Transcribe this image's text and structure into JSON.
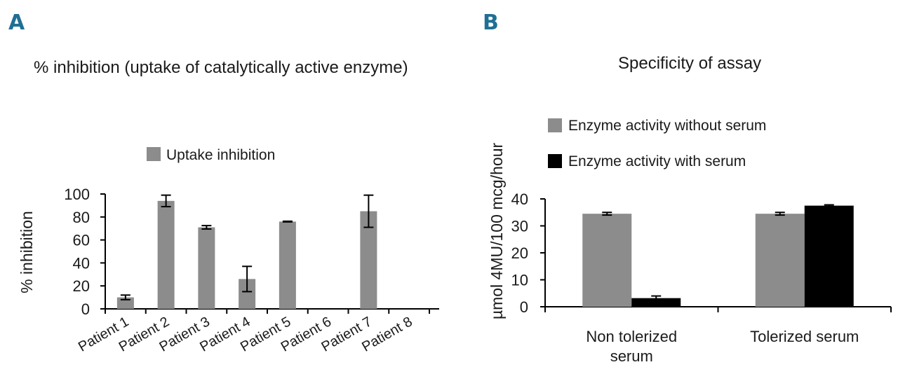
{
  "panel_a": {
    "letter": "A",
    "title": "% inhibition (uptake of catalytically active enzyme)",
    "legend": "Uptake inhibition",
    "ylabel": "% inhibition"
  },
  "panel_b": {
    "letter": "B",
    "title": "Specificity of assay",
    "legend_without": "Enzyme activity without serum",
    "legend_with": "Enzyme activity with serum",
    "ylabel": "µmol 4MU/100 mcg/hour"
  },
  "chart_data": [
    {
      "type": "bar",
      "title": "% inhibition (uptake of catalytically active enzyme)",
      "xlabel": "",
      "ylabel": "% inhibition",
      "ylim": [
        0,
        100
      ],
      "yticks": [
        0,
        20,
        40,
        60,
        80,
        100
      ],
      "categories": [
        "Patient 1",
        "Patient 2",
        "Patient 3",
        "Patient 4",
        "Patient 5",
        "Patient 6",
        "Patient 7",
        "Patient 8"
      ],
      "series": [
        {
          "name": "Uptake inhibition",
          "color": "#8c8c8c",
          "values": [
            10,
            94,
            71,
            26,
            76,
            0,
            85,
            0
          ],
          "error": [
            2,
            5,
            1.5,
            11,
            0.3,
            0,
            14,
            0
          ]
        }
      ],
      "legend": "top-center",
      "grid": false
    },
    {
      "type": "bar",
      "title": "Specificity of assay",
      "xlabel": "",
      "ylabel": "µmol 4MU/100 mcg/hour",
      "ylim": [
        0,
        40
      ],
      "yticks": [
        0,
        10,
        20,
        30,
        40
      ],
      "categories": [
        "Non tolerized serum",
        "Tolerized serum"
      ],
      "series": [
        {
          "name": "Enzyme activity without serum",
          "color": "#8c8c8c",
          "values": [
            34.5,
            34.5
          ],
          "error": [
            0.5,
            0.5
          ]
        },
        {
          "name": "Enzyme activity with serum",
          "color": "#000000",
          "values": [
            3.2,
            37.5
          ],
          "error": [
            0.8,
            0.3
          ]
        }
      ],
      "legend": "top-left",
      "grid": false
    }
  ]
}
